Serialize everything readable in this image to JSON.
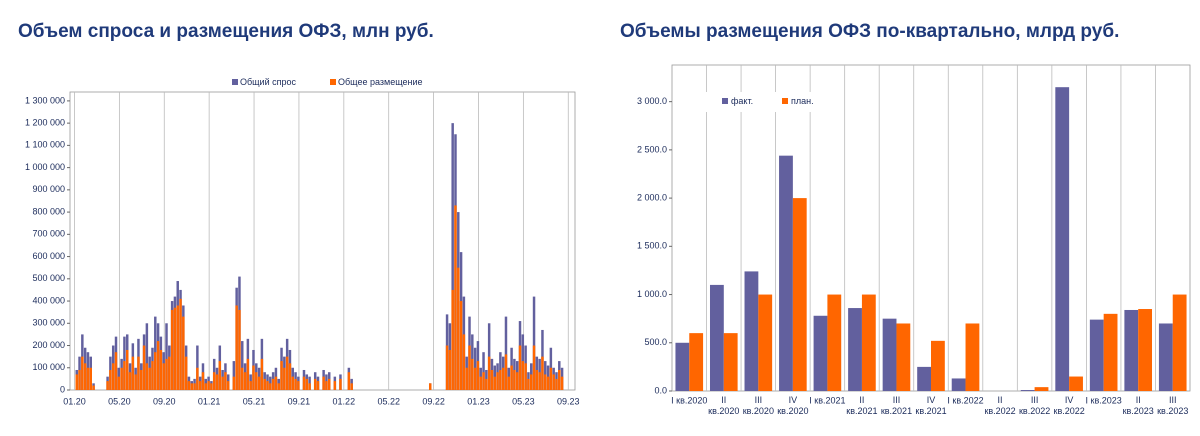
{
  "chart_data": [
    {
      "type": "bar",
      "title": "Объем спроса и размещения ОФЗ, млн руб.",
      "x": [
        0.2,
        0.45,
        0.7,
        0.95,
        1.2,
        1.45,
        1.7,
        2.95,
        3.2,
        3.45,
        3.7,
        3.95,
        4.2,
        4.45,
        4.7,
        4.95,
        5.2,
        5.45,
        5.7,
        5.95,
        6.2,
        6.45,
        6.7,
        6.95,
        7.2,
        7.45,
        7.7,
        7.95,
        8.2,
        8.45,
        8.7,
        8.95,
        9.2,
        9.45,
        9.7,
        9.95,
        10.2,
        10.45,
        10.7,
        10.95,
        11.2,
        11.45,
        11.7,
        11.95,
        12.2,
        12.45,
        12.7,
        12.95,
        13.2,
        13.45,
        13.7,
        14.2,
        14.45,
        14.7,
        14.95,
        15.2,
        15.45,
        15.7,
        15.95,
        16.2,
        16.45,
        16.7,
        16.95,
        17.2,
        17.45,
        17.7,
        17.95,
        18.2,
        18.45,
        18.7,
        18.95,
        19.2,
        19.45,
        19.7,
        19.95,
        20.45,
        20.7,
        20.95,
        21.45,
        21.7,
        22.2,
        22.45,
        22.7,
        23.2,
        23.7,
        24.45,
        24.7,
        31.7,
        33.2,
        33.45,
        33.7,
        33.95,
        34.2,
        34.45,
        34.7,
        34.95,
        35.2,
        35.45,
        35.7,
        35.95,
        36.2,
        36.45,
        36.7,
        36.95,
        37.2,
        37.45,
        37.7,
        37.95,
        38.2,
        38.45,
        38.7,
        38.95,
        39.2,
        39.45,
        39.7,
        39.95,
        40.2,
        40.45,
        40.7,
        40.95,
        41.2,
        41.45,
        41.7,
        41.95,
        42.2,
        42.45,
        42.7,
        42.95,
        43.2,
        43.45
      ],
      "series": [
        {
          "name": "Общий спрос",
          "color": "#62609e",
          "values": [
            90000,
            150000,
            250000,
            190000,
            170000,
            150000,
            30000,
            60000,
            150000,
            200000,
            240000,
            100000,
            140000,
            240000,
            250000,
            120000,
            210000,
            100000,
            230000,
            120000,
            250000,
            300000,
            150000,
            190000,
            330000,
            300000,
            240000,
            170000,
            300000,
            200000,
            400000,
            420000,
            490000,
            450000,
            380000,
            200000,
            60000,
            40000,
            50000,
            200000,
            60000,
            120000,
            50000,
            60000,
            40000,
            140000,
            100000,
            200000,
            90000,
            120000,
            70000,
            130000,
            460000,
            510000,
            220000,
            120000,
            230000,
            70000,
            180000,
            120000,
            100000,
            230000,
            80000,
            70000,
            60000,
            80000,
            100000,
            50000,
            190000,
            150000,
            230000,
            180000,
            100000,
            80000,
            60000,
            90000,
            70000,
            60000,
            80000,
            60000,
            90000,
            70000,
            80000,
            60000,
            70000,
            100000,
            50000,
            30000,
            340000,
            300000,
            1200000,
            1150000,
            800000,
            620000,
            420000,
            150000,
            330000,
            250000,
            190000,
            220000,
            100000,
            170000,
            90000,
            300000,
            140000,
            110000,
            120000,
            170000,
            150000,
            330000,
            100000,
            190000,
            140000,
            130000,
            310000,
            250000,
            200000,
            80000,
            120000,
            420000,
            150000,
            140000,
            270000,
            130000,
            110000,
            190000,
            100000,
            80000,
            130000,
            100000
          ]
        },
        {
          "name": "Общее размещение",
          "color": "#ff6600",
          "values": [
            70000,
            90000,
            150000,
            120000,
            100000,
            100000,
            20000,
            40000,
            90000,
            120000,
            170000,
            60000,
            100000,
            130000,
            180000,
            80000,
            150000,
            70000,
            150000,
            90000,
            200000,
            120000,
            100000,
            130000,
            170000,
            220000,
            180000,
            120000,
            140000,
            150000,
            360000,
            370000,
            380000,
            410000,
            330000,
            150000,
            40000,
            30000,
            30000,
            100000,
            40000,
            80000,
            30000,
            40000,
            30000,
            80000,
            70000,
            130000,
            60000,
            80000,
            40000,
            60000,
            380000,
            360000,
            100000,
            80000,
            140000,
            40000,
            110000,
            80000,
            60000,
            140000,
            50000,
            40000,
            30000,
            50000,
            60000,
            30000,
            130000,
            100000,
            150000,
            120000,
            60000,
            50000,
            40000,
            60000,
            50000,
            30000,
            50000,
            40000,
            60000,
            40000,
            50000,
            40000,
            50000,
            80000,
            30000,
            30000,
            200000,
            180000,
            450000,
            830000,
            550000,
            400000,
            250000,
            100000,
            200000,
            140000,
            100000,
            130000,
            60000,
            80000,
            50000,
            150000,
            90000,
            60000,
            80000,
            90000,
            100000,
            160000,
            60000,
            110000,
            90000,
            80000,
            200000,
            130000,
            120000,
            50000,
            70000,
            200000,
            90000,
            80000,
            150000,
            70000,
            60000,
            100000,
            70000,
            50000,
            90000,
            60000
          ]
        }
      ],
      "xlim": [
        -0.4,
        44.6
      ],
      "xticks": [
        {
          "value": 0,
          "label": "01.20"
        },
        {
          "value": 4,
          "label": "05.20"
        },
        {
          "value": 8,
          "label": "09.20"
        },
        {
          "value": 12,
          "label": "01.21"
        },
        {
          "value": 16,
          "label": "05.21"
        },
        {
          "value": 20,
          "label": "09.21"
        },
        {
          "value": 24,
          "label": "01.22"
        },
        {
          "value": 28,
          "label": "05.22"
        },
        {
          "value": 32,
          "label": "09.22"
        },
        {
          "value": 36,
          "label": "01.23"
        },
        {
          "value": 40,
          "label": "05.23"
        },
        {
          "value": 44,
          "label": "09.23"
        }
      ],
      "ylim": [
        0,
        1340000
      ],
      "yticks": [
        0,
        {
          "value": 100000,
          "label": "100 000"
        },
        {
          "value": 200000,
          "label": "200 000"
        },
        {
          "value": 300000,
          "label": "300 000"
        },
        {
          "value": 400000,
          "label": "400 000"
        },
        {
          "value": 500000,
          "label": "500 000"
        },
        {
          "value": 600000,
          "label": "600 000"
        },
        {
          "value": 700000,
          "label": "700 000"
        },
        {
          "value": 800000,
          "label": "800 000"
        },
        {
          "value": 900000,
          "label": "900 000"
        },
        {
          "value": 1000000,
          "label": "1 000 000"
        },
        {
          "value": 1100000,
          "label": "1 100 000"
        },
        {
          "value": 1200000,
          "label": "1 200 000"
        },
        {
          "value": 1300000,
          "label": "1 300 000"
        }
      ],
      "legend": "top",
      "grid": "x"
    },
    {
      "type": "bar",
      "title": "Объемы размещения ОФЗ по-квартально, млрд руб.",
      "categories": [
        "I кв.2020",
        "II кв.2020",
        "III кв.2020",
        "IV кв.2020",
        "I кв.2021",
        "II кв.2021",
        "III кв.2021",
        "IV кв.2021",
        "I кв.2022",
        "II кв.2022",
        "III кв.2022",
        "IV кв.2022",
        "I кв.2023",
        "II кв.2023",
        "III кв.2023"
      ],
      "series": [
        {
          "name": "факт.",
          "color": "#62609e",
          "values": [
            500,
            1100,
            1240,
            2440,
            780,
            860,
            750,
            250,
            130,
            0,
            10,
            3150,
            740,
            840,
            700
          ]
        },
        {
          "name": "план.",
          "color": "#ff6600",
          "values": [
            600,
            600,
            1000,
            2000,
            1000,
            1000,
            700,
            520,
            700,
            0,
            40,
            150,
            800,
            850,
            1000
          ]
        }
      ],
      "ylim": [
        0,
        3380
      ],
      "yticks": [
        {
          "value": 0,
          "label": "0.0"
        },
        {
          "value": 500,
          "label": "500.0"
        },
        {
          "value": 1000,
          "label": "1 000.0"
        },
        {
          "value": 1500,
          "label": "1 500.0"
        },
        {
          "value": 2000,
          "label": "2 000.0"
        },
        {
          "value": 2500,
          "label": "2 500.0"
        },
        {
          "value": 3000,
          "label": "3 000.0"
        }
      ],
      "legend": "top-left",
      "grid": "x"
    }
  ]
}
